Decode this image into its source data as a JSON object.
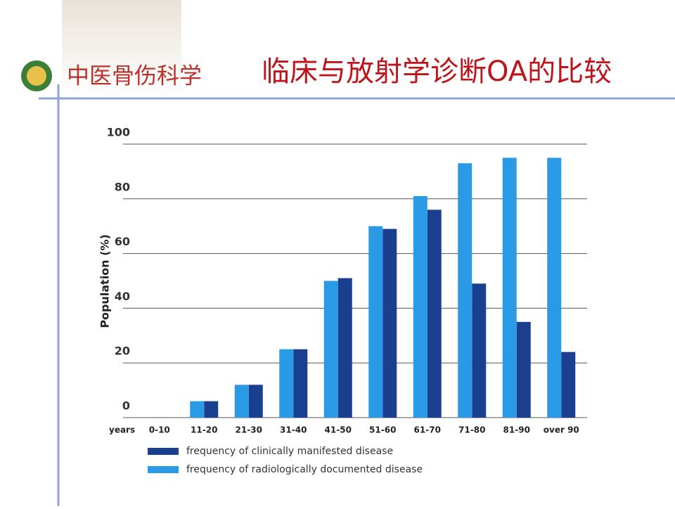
{
  "header": {
    "logo_text": "中医骨伤科学",
    "title": "临床与放射学诊断OA的比较"
  },
  "chart_data": {
    "type": "bar",
    "y_label": "Population (%)",
    "x_label": "years",
    "categories": [
      "0-10",
      "11-20",
      "21-30",
      "31-40",
      "41-50",
      "51-60",
      "61-70",
      "71-80",
      "81-90",
      "over 90"
    ],
    "series": [
      {
        "name": "frequency of clinically manifested disease",
        "color": "#1b3f8f",
        "values": [
          0,
          6,
          12,
          25,
          51,
          69,
          76,
          49,
          35,
          24
        ]
      },
      {
        "name": "frequency of radiologically documented disease",
        "color": "#2a9ae6",
        "values": [
          0,
          6,
          12,
          25,
          50,
          70,
          81,
          93,
          95,
          95
        ]
      }
    ],
    "ylim": [
      0,
      100
    ],
    "yticks": [
      0,
      20,
      40,
      60,
      80,
      100
    ],
    "grid": true
  }
}
